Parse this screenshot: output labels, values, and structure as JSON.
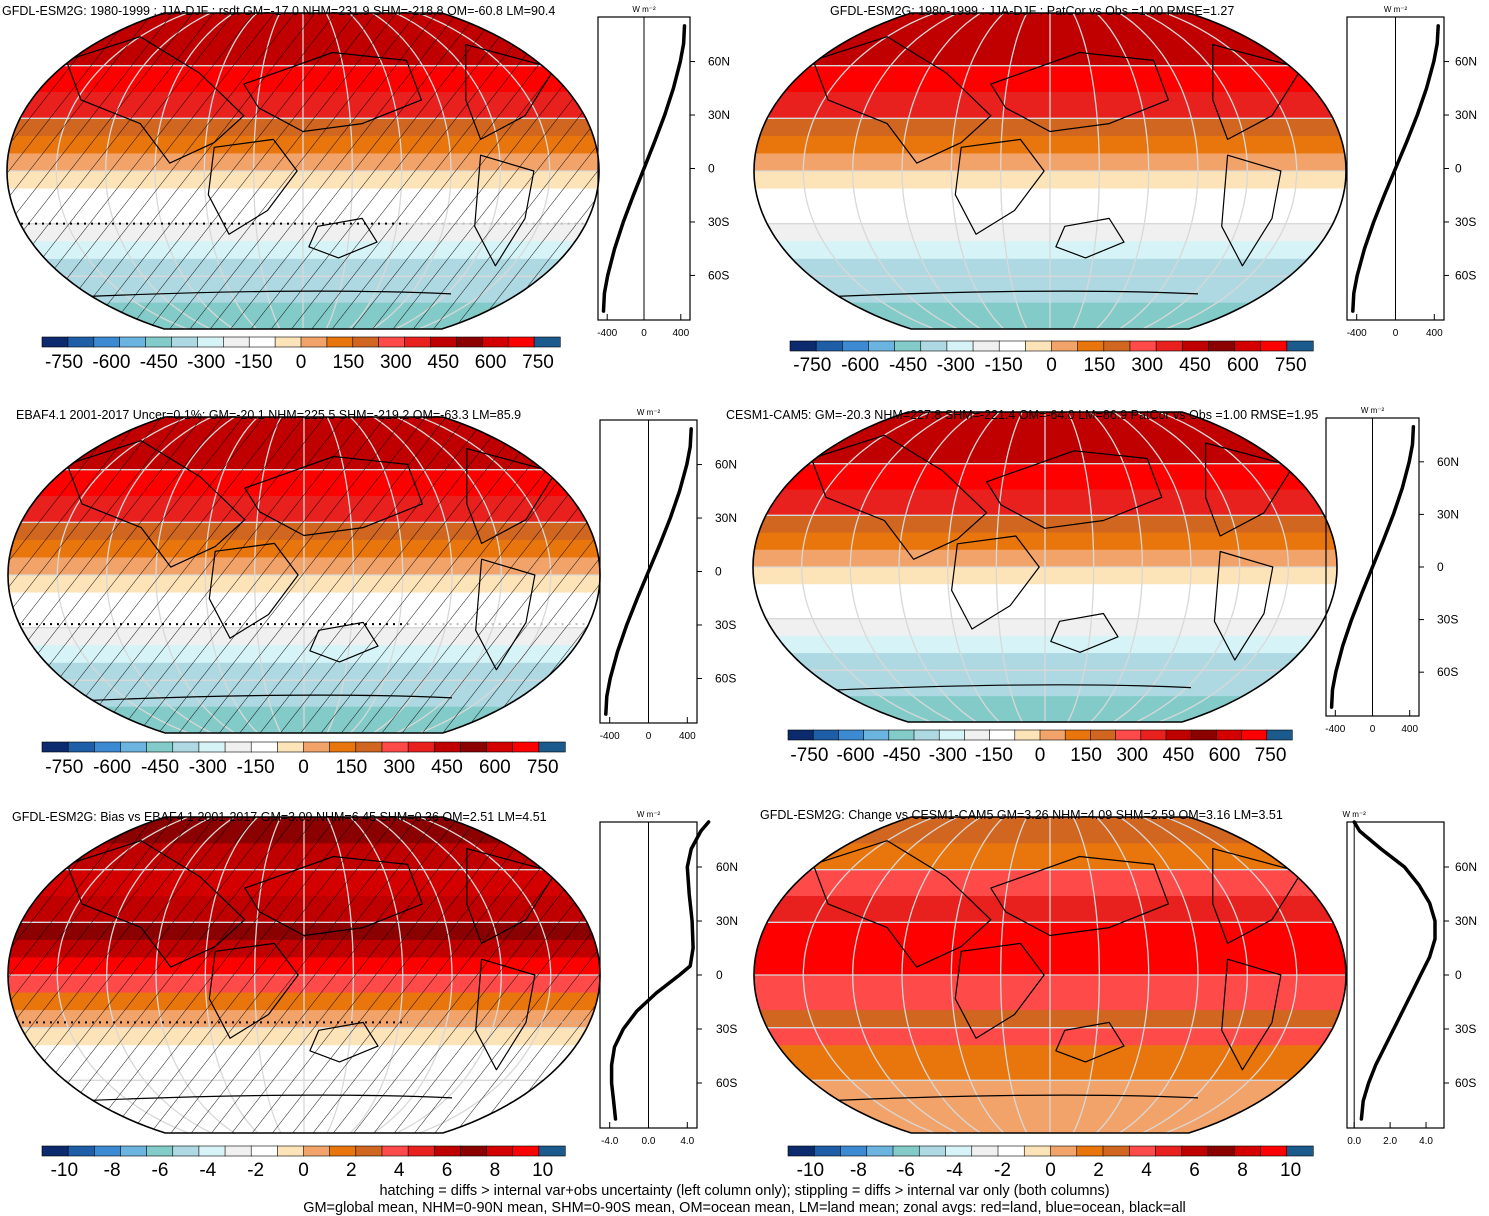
{
  "figure": {
    "footnote_line1": "hatching = diffs > internal var+obs uncertainty (left column only); stippling = diffs > internal var only (both columns)",
    "footnote_line2": "GM=global mean, NHM=0-90N mean, SHM=0-90S mean, OM=ocean mean, LM=land mean; zonal avgs: red=land, blue=ocean, black=all"
  },
  "colorbar": {
    "colors": [
      "#0c2a6e",
      "#1d5ea6",
      "#3c8ad1",
      "#6cb4e0",
      "#83cbc8",
      "#aed9e3",
      "#d6f4f7",
      "#f0f0f0",
      "#ffffff",
      "#fde3b8",
      "#f2a36a",
      "#e8760c",
      "#d0661f",
      "#ff4a4a",
      "#e8201e",
      "#c00000",
      "#8b0000",
      "#d40000",
      "#ff0000",
      "#1a5a8c"
    ],
    "ticks_large": [
      "-750",
      "-600",
      "-450",
      "-300",
      "-150",
      "0",
      "150",
      "300",
      "450",
      "600",
      "750"
    ],
    "ticks_small": [
      "-10",
      "-8",
      "-6",
      "-4",
      "-2",
      "0",
      "2",
      "4",
      "6",
      "8",
      "10"
    ]
  },
  "chart_data": [
    {
      "type": "heatmap",
      "id": "gfdl-djf",
      "title": "GFDL-ESM2G: 1980-1999 : JJA-DJF : rsdt GM=-17.0 NHM=231.9 SHM=-218.8 OM=-60.8 LM=90.4",
      "lat_bands": [
        [
          90,
          75,
          "#c00000"
        ],
        [
          75,
          60,
          "#c00000"
        ],
        [
          60,
          45,
          "#ff0000"
        ],
        [
          45,
          30,
          "#e8201e"
        ],
        [
          30,
          20,
          "#d0661f"
        ],
        [
          20,
          10,
          "#e8760c"
        ],
        [
          10,
          0,
          "#f2a36a"
        ],
        [
          0,
          -10,
          "#fde3b8"
        ],
        [
          -10,
          -20,
          "#ffffff"
        ],
        [
          -20,
          -30,
          "#ffffff"
        ],
        [
          -30,
          -40,
          "#f0f0f0"
        ],
        [
          -40,
          -50,
          "#d6f4f7"
        ],
        [
          -50,
          -60,
          "#aed9e3"
        ],
        [
          -60,
          -75,
          "#aed9e3"
        ],
        [
          -75,
          -90,
          "#83cbc8"
        ]
      ],
      "hatched": true,
      "stipple_lat": -30,
      "zonal": {
        "ylabel": "W m⁻²",
        "xlim": [
          -500,
          500
        ],
        "xticks": [
          "-400",
          "0",
          "400"
        ],
        "xtick_values": [
          -400,
          0,
          400
        ],
        "yticks": [
          "60N",
          "30N",
          "0",
          "30S",
          "60S"
        ],
        "ytick_values": [
          60,
          30,
          0,
          -30,
          -60
        ],
        "lats": [
          80,
          70,
          60,
          45,
          30,
          15,
          0,
          -15,
          -30,
          -45,
          -60,
          -70,
          -80
        ],
        "values": [
          440,
          430,
          395,
          320,
          225,
          115,
          0,
          -115,
          -225,
          -320,
          -395,
          -430,
          -440
        ]
      },
      "colorbar_ticks": "large"
    },
    {
      "type": "heatmap",
      "id": "gfdl-djf-patcor",
      "title": "GFDL-ESM2G: 1980-1999 : JJA-DJF : PatCor vs Obs =1.00 RMSE=1.27",
      "lat_bands": [
        [
          90,
          75,
          "#c00000"
        ],
        [
          75,
          60,
          "#c00000"
        ],
        [
          60,
          45,
          "#ff0000"
        ],
        [
          45,
          30,
          "#e8201e"
        ],
        [
          30,
          20,
          "#d0661f"
        ],
        [
          20,
          10,
          "#e8760c"
        ],
        [
          10,
          0,
          "#f2a36a"
        ],
        [
          0,
          -10,
          "#fde3b8"
        ],
        [
          -10,
          -20,
          "#ffffff"
        ],
        [
          -20,
          -30,
          "#ffffff"
        ],
        [
          -30,
          -40,
          "#f0f0f0"
        ],
        [
          -40,
          -50,
          "#d6f4f7"
        ],
        [
          -50,
          -60,
          "#aed9e3"
        ],
        [
          -60,
          -75,
          "#aed9e3"
        ],
        [
          -75,
          -90,
          "#83cbc8"
        ]
      ],
      "hatched": false,
      "stipple_lat": null,
      "zonal": {
        "ylabel": "W m⁻²",
        "xlim": [
          -500,
          500
        ],
        "xticks": [
          "-400",
          "0",
          "400"
        ],
        "xtick_values": [
          -400,
          0,
          400
        ],
        "yticks": [
          "60N",
          "30N",
          "0",
          "30S",
          "60S"
        ],
        "ytick_values": [
          60,
          30,
          0,
          -30,
          -60
        ],
        "lats": [
          80,
          70,
          60,
          45,
          30,
          15,
          0,
          -15,
          -30,
          -45,
          -60,
          -70,
          -80
        ],
        "values": [
          440,
          430,
          395,
          320,
          225,
          115,
          0,
          -115,
          -225,
          -320,
          -395,
          -430,
          -440
        ]
      },
      "colorbar_ticks": "large"
    },
    {
      "type": "heatmap",
      "id": "ebaf",
      "title": "EBAF4.1 2001-2017 Uncer=0.1%: GM=-20.1 NHM=225.5 SHM=-219.2 OM=-63.3 LM=85.9",
      "lat_bands": [
        [
          90,
          75,
          "#c00000"
        ],
        [
          75,
          60,
          "#c00000"
        ],
        [
          60,
          45,
          "#ff0000"
        ],
        [
          45,
          30,
          "#e8201e"
        ],
        [
          30,
          20,
          "#d0661f"
        ],
        [
          20,
          10,
          "#e8760c"
        ],
        [
          10,
          0,
          "#f2a36a"
        ],
        [
          0,
          -10,
          "#fde3b8"
        ],
        [
          -10,
          -20,
          "#ffffff"
        ],
        [
          -20,
          -30,
          "#ffffff"
        ],
        [
          -30,
          -40,
          "#f0f0f0"
        ],
        [
          -40,
          -50,
          "#d6f4f7"
        ],
        [
          -50,
          -60,
          "#aed9e3"
        ],
        [
          -60,
          -75,
          "#aed9e3"
        ],
        [
          -75,
          -90,
          "#83cbc8"
        ]
      ],
      "hatched": true,
      "stipple_lat": -28,
      "zonal": {
        "ylabel": "W m⁻²",
        "xlim": [
          -500,
          500
        ],
        "xticks": [
          "-400",
          "0",
          "400"
        ],
        "xtick_values": [
          -400,
          0,
          400
        ],
        "yticks": [
          "60N",
          "30N",
          "0",
          "30S",
          "60S"
        ],
        "ytick_values": [
          60,
          30,
          0,
          -30,
          -60
        ],
        "lats": [
          80,
          70,
          60,
          45,
          30,
          15,
          0,
          -15,
          -30,
          -45,
          -60,
          -70,
          -80
        ],
        "values": [
          440,
          430,
          395,
          320,
          225,
          115,
          0,
          -115,
          -225,
          -320,
          -395,
          -430,
          -440
        ]
      },
      "colorbar_ticks": "large"
    },
    {
      "type": "heatmap",
      "id": "cesm",
      "title": "CESM1-CAM5: GM=-20.3 NHM=227.8 SHM=-221.4 OM=-64.0 LM=86.9 PatCor vs Obs =1.00 RMSE=1.95",
      "lat_bands": [
        [
          90,
          75,
          "#c00000"
        ],
        [
          75,
          60,
          "#c00000"
        ],
        [
          60,
          45,
          "#ff0000"
        ],
        [
          45,
          30,
          "#e8201e"
        ],
        [
          30,
          20,
          "#d0661f"
        ],
        [
          20,
          10,
          "#e8760c"
        ],
        [
          10,
          0,
          "#f2a36a"
        ],
        [
          0,
          -10,
          "#fde3b8"
        ],
        [
          -10,
          -20,
          "#ffffff"
        ],
        [
          -20,
          -30,
          "#ffffff"
        ],
        [
          -30,
          -40,
          "#f0f0f0"
        ],
        [
          -40,
          -50,
          "#d6f4f7"
        ],
        [
          -50,
          -60,
          "#aed9e3"
        ],
        [
          -60,
          -75,
          "#aed9e3"
        ],
        [
          -75,
          -90,
          "#83cbc8"
        ]
      ],
      "hatched": false,
      "stipple_lat": null,
      "zonal": {
        "ylabel": "W m⁻²",
        "xlim": [
          -500,
          500
        ],
        "xticks": [
          "-400",
          "0",
          "400"
        ],
        "xtick_values": [
          -400,
          0,
          400
        ],
        "yticks": [
          "60N",
          "30N",
          "0",
          "30S",
          "60S"
        ],
        "ytick_values": [
          60,
          30,
          0,
          -30,
          -60
        ],
        "lats": [
          80,
          70,
          60,
          45,
          30,
          15,
          0,
          -15,
          -30,
          -45,
          -60,
          -70,
          -80
        ],
        "values": [
          440,
          430,
          395,
          320,
          225,
          115,
          0,
          -115,
          -225,
          -320,
          -395,
          -430,
          -440
        ]
      },
      "colorbar_ticks": "large"
    },
    {
      "type": "heatmap",
      "id": "bias",
      "title": "GFDL-ESM2G: Bias vs EBAF4.1 2001-2017 GM=3.09 NHM=6.45 SHM=0.36 OM=2.51 LM=4.51",
      "lat_bands": [
        [
          90,
          75,
          "#8b0000"
        ],
        [
          75,
          60,
          "#c00000"
        ],
        [
          60,
          45,
          "#d40000"
        ],
        [
          45,
          30,
          "#c00000"
        ],
        [
          30,
          20,
          "#8b0000"
        ],
        [
          20,
          10,
          "#c00000"
        ],
        [
          10,
          0,
          "#ff0000"
        ],
        [
          0,
          -10,
          "#ff4a4a"
        ],
        [
          -10,
          -20,
          "#e8760c"
        ],
        [
          -20,
          -30,
          "#f2a36a"
        ],
        [
          -30,
          -40,
          "#fde3b8"
        ],
        [
          -40,
          -50,
          "#ffffff"
        ],
        [
          -50,
          -60,
          "#ffffff"
        ],
        [
          -60,
          -75,
          "#ffffff"
        ],
        [
          -75,
          -90,
          "#ffffff"
        ]
      ],
      "hatched": true,
      "stipple_lat": -27,
      "zonal": {
        "ylabel": "W m⁻²",
        "xlim": [
          -5,
          5
        ],
        "xticks": [
          "-4.0",
          "0.0",
          "4.0"
        ],
        "xtick_values": [
          -4,
          0,
          4
        ],
        "yticks": [
          "60N",
          "30N",
          "0",
          "30S",
          "60S"
        ],
        "ytick_values": [
          60,
          30,
          0,
          -30,
          -60
        ],
        "lats": [
          85,
          80,
          70,
          60,
          45,
          30,
          15,
          5,
          0,
          -10,
          -20,
          -30,
          -40,
          -50,
          -60,
          -70,
          -80
        ],
        "values": [
          6.2,
          5.4,
          4.4,
          4.0,
          4.2,
          4.5,
          4.6,
          4.3,
          3.2,
          0.8,
          -1.2,
          -2.6,
          -3.5,
          -3.8,
          -3.8,
          -3.6,
          -3.4
        ]
      },
      "colorbar_ticks": "small"
    },
    {
      "type": "heatmap",
      "id": "change",
      "title": "GFDL-ESM2G: Change vs CESM1-CAM5 GM=3.26 NHM=4.09 SHM=2.59 OM=3.16 LM=3.51",
      "lat_bands": [
        [
          90,
          75,
          "#d0661f"
        ],
        [
          75,
          60,
          "#e8760c"
        ],
        [
          60,
          45,
          "#ff4a4a"
        ],
        [
          45,
          30,
          "#e8201e"
        ],
        [
          30,
          20,
          "#ff0000"
        ],
        [
          20,
          10,
          "#ff0000"
        ],
        [
          10,
          0,
          "#ff0000"
        ],
        [
          0,
          -10,
          "#ff4a4a"
        ],
        [
          -10,
          -20,
          "#ff4a4a"
        ],
        [
          -20,
          -30,
          "#d0661f"
        ],
        [
          -30,
          -40,
          "#ff4a4a"
        ],
        [
          -40,
          -50,
          "#e8760c"
        ],
        [
          -50,
          -60,
          "#e8760c"
        ],
        [
          -60,
          -75,
          "#f2a36a"
        ],
        [
          -75,
          -90,
          "#f2a36a"
        ]
      ],
      "hatched": false,
      "stipple_lat": null,
      "zonal": {
        "ylabel": "W m⁻²",
        "xlim": [
          -0.4,
          5
        ],
        "xticks": [
          "0.0",
          "2.0",
          "4.0"
        ],
        "xtick_values": [
          0,
          2,
          4
        ],
        "yticks": [
          "60N",
          "30N",
          "0",
          "30S",
          "60S"
        ],
        "ytick_values": [
          60,
          30,
          0,
          -30,
          -60
        ],
        "lats": [
          85,
          80,
          70,
          60,
          50,
          40,
          30,
          20,
          10,
          0,
          -10,
          -20,
          -30,
          -40,
          -50,
          -60,
          -70,
          -80
        ],
        "values": [
          0.0,
          0.3,
          1.5,
          2.8,
          3.6,
          4.2,
          4.5,
          4.5,
          4.2,
          3.7,
          3.2,
          2.7,
          2.2,
          1.7,
          1.2,
          0.8,
          0.5,
          0.4
        ]
      },
      "colorbar_ticks": "small"
    }
  ]
}
